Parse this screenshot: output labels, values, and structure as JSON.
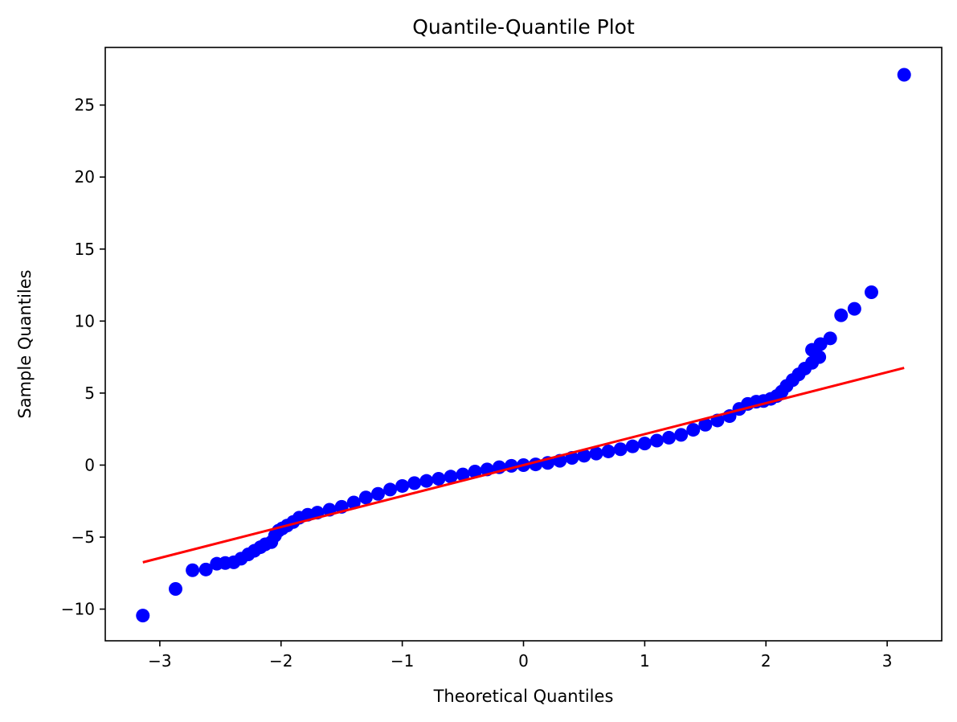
{
  "chart_data": {
    "type": "scatter",
    "title": "Quantile-Quantile Plot",
    "xlabel": "Theoretical Quantiles",
    "ylabel": "Sample Quantiles",
    "xlim": [
      -3.45,
      3.45
    ],
    "ylim": [
      -12.2,
      29.0
    ],
    "grid": false,
    "x_ticks": [
      {
        "value": -3,
        "label": "−3"
      },
      {
        "value": -2,
        "label": "−2"
      },
      {
        "value": -1,
        "label": "−1"
      },
      {
        "value": 0,
        "label": "0"
      },
      {
        "value": 1,
        "label": "1"
      },
      {
        "value": 2,
        "label": "2"
      },
      {
        "value": 3,
        "label": "3"
      }
    ],
    "y_ticks": [
      {
        "value": -10,
        "label": "−10"
      },
      {
        "value": -5,
        "label": "−5"
      },
      {
        "value": 0,
        "label": "0"
      },
      {
        "value": 5,
        "label": "5"
      },
      {
        "value": 10,
        "label": "10"
      },
      {
        "value": 15,
        "label": "15"
      },
      {
        "value": 20,
        "label": "20"
      },
      {
        "value": 25,
        "label": "25"
      }
    ],
    "colors": {
      "points": "#0000ff",
      "reference_line": "#ff0000",
      "axes": "#000000"
    },
    "series": [
      {
        "type": "scatter",
        "points": [
          [
            -3.14,
            -10.45
          ],
          [
            -2.87,
            -8.6
          ],
          [
            -2.73,
            -7.3
          ],
          [
            -2.62,
            -7.25
          ],
          [
            -2.53,
            -6.85
          ],
          [
            -2.46,
            -6.8
          ],
          [
            -2.39,
            -6.75
          ],
          [
            -2.33,
            -6.5
          ],
          [
            -2.27,
            -6.2
          ],
          [
            -2.22,
            -5.95
          ],
          [
            -2.17,
            -5.7
          ],
          [
            -2.13,
            -5.5
          ],
          [
            -2.08,
            -5.35
          ],
          [
            -2.05,
            -4.9
          ],
          [
            -2.02,
            -4.55
          ],
          [
            -1.99,
            -4.4
          ],
          [
            -1.95,
            -4.2
          ],
          [
            -1.9,
            -3.95
          ],
          [
            -1.85,
            -3.65
          ],
          [
            -1.78,
            -3.45
          ],
          [
            -1.7,
            -3.3
          ],
          [
            -1.6,
            -3.1
          ],
          [
            -1.5,
            -2.9
          ],
          [
            -1.4,
            -2.6
          ],
          [
            -1.3,
            -2.25
          ],
          [
            -1.2,
            -2.0
          ],
          [
            -1.1,
            -1.7
          ],
          [
            -1.0,
            -1.45
          ],
          [
            -0.9,
            -1.25
          ],
          [
            -0.8,
            -1.1
          ],
          [
            -0.7,
            -0.95
          ],
          [
            -0.6,
            -0.8
          ],
          [
            -0.5,
            -0.65
          ],
          [
            -0.4,
            -0.45
          ],
          [
            -0.3,
            -0.3
          ],
          [
            -0.2,
            -0.15
          ],
          [
            -0.1,
            -0.05
          ],
          [
            0.0,
            0.0
          ],
          [
            0.1,
            0.05
          ],
          [
            0.2,
            0.15
          ],
          [
            0.3,
            0.3
          ],
          [
            0.4,
            0.5
          ],
          [
            0.5,
            0.65
          ],
          [
            0.6,
            0.8
          ],
          [
            0.7,
            0.95
          ],
          [
            0.8,
            1.1
          ],
          [
            0.9,
            1.3
          ],
          [
            1.0,
            1.5
          ],
          [
            1.1,
            1.7
          ],
          [
            1.2,
            1.9
          ],
          [
            1.3,
            2.1
          ],
          [
            1.4,
            2.45
          ],
          [
            1.5,
            2.8
          ],
          [
            1.6,
            3.1
          ],
          [
            1.7,
            3.4
          ],
          [
            1.78,
            3.9
          ],
          [
            1.85,
            4.25
          ],
          [
            1.92,
            4.4
          ],
          [
            1.98,
            4.45
          ],
          [
            2.04,
            4.6
          ],
          [
            2.09,
            4.8
          ],
          [
            2.13,
            5.1
          ],
          [
            2.17,
            5.5
          ],
          [
            2.22,
            5.9
          ],
          [
            2.27,
            6.3
          ],
          [
            2.32,
            6.7
          ],
          [
            2.38,
            7.1
          ],
          [
            2.44,
            7.5
          ],
          [
            2.38,
            8.0
          ],
          [
            2.45,
            8.4
          ],
          [
            2.53,
            8.8
          ],
          [
            2.62,
            10.4
          ],
          [
            2.73,
            10.85
          ],
          [
            2.87,
            12.0
          ],
          [
            3.14,
            27.1
          ]
        ]
      },
      {
        "type": "line",
        "points": [
          [
            -3.14,
            -6.75
          ],
          [
            3.14,
            6.75
          ]
        ]
      }
    ]
  }
}
